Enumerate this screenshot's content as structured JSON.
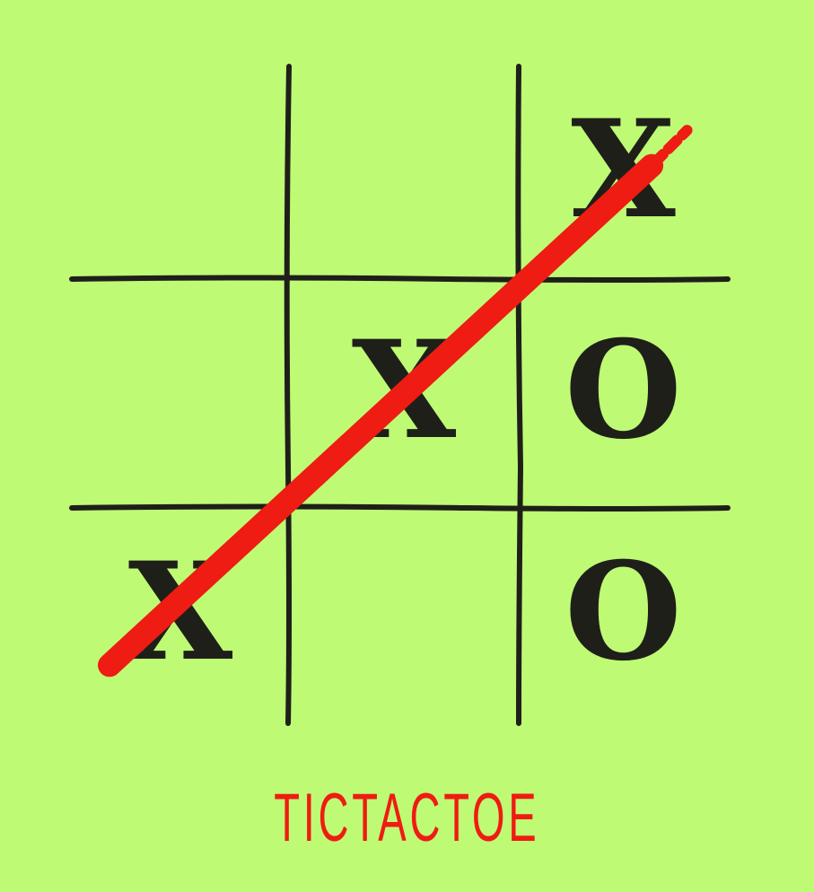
{
  "game": {
    "title": "TICTACTOE",
    "board": [
      [
        "",
        "",
        "X"
      ],
      [
        "",
        "X",
        "O"
      ],
      [
        "X",
        "",
        "O"
      ]
    ],
    "winning_line": [
      [
        2,
        0
      ],
      [
        1,
        1
      ],
      [
        0,
        2
      ]
    ]
  },
  "colors": {
    "background": "#bffa74",
    "grid": "#1f1f1a",
    "mark": "#1f1f1a",
    "strike": "#ee1c12",
    "title": "#ee1c12"
  }
}
